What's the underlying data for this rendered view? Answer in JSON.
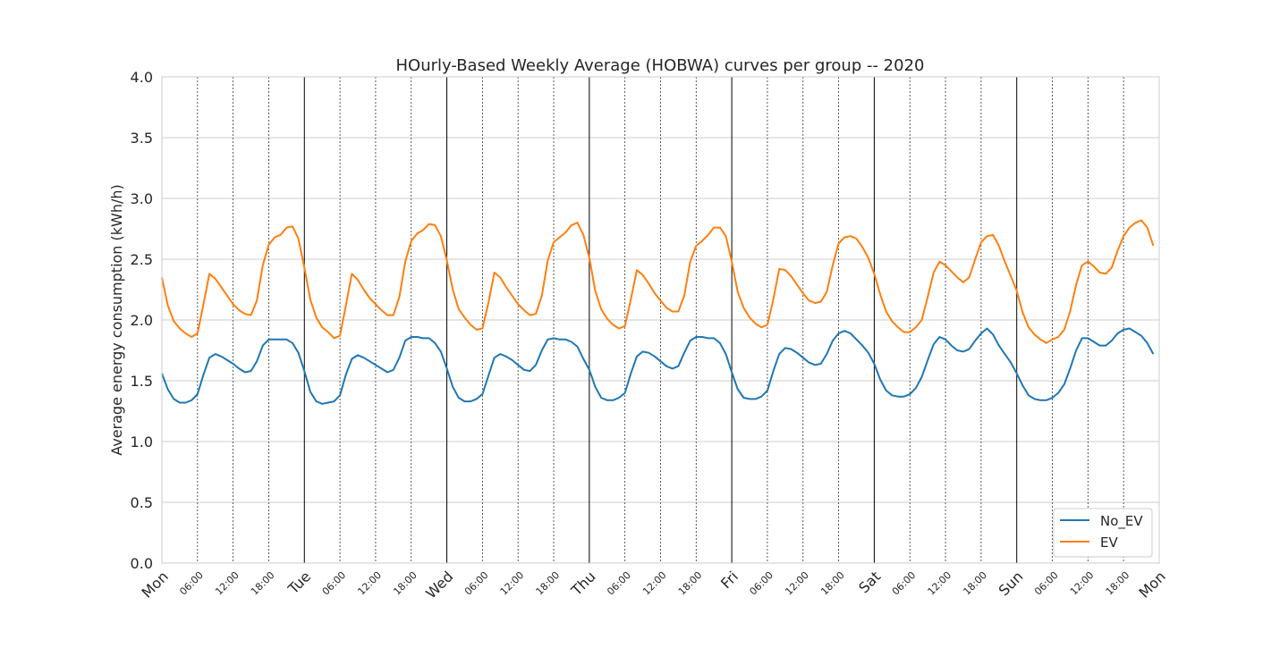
{
  "chart_data": {
    "type": "line",
    "title": "HOurly-Based Weekly Average (HOBWA) curves per group -- 2020",
    "xlabel": "",
    "ylabel": "Average energy consumption (kWh/h)",
    "ylim": [
      0,
      4
    ],
    "yticks": [
      "0.0",
      "0.5",
      "1.0",
      "1.5",
      "2.0",
      "2.5",
      "3.0",
      "3.5",
      "4.0"
    ],
    "xlim_hours": [
      0,
      168
    ],
    "x_unit": "hour of week (Mon 00:00 = 0)",
    "x_major_ticks": [
      "Mon",
      "Tue",
      "Wed",
      "Thu",
      "Fri",
      "Sat",
      "Sun",
      "Mon"
    ],
    "x_minor_ticks": [
      "06:00",
      "12:00",
      "18:00"
    ],
    "grid": true,
    "legend_position": "lower-right",
    "colors": {
      "No_EV": "#1f77b4",
      "EV": "#ff7f0e",
      "grid": "#cccccc"
    },
    "days": [
      {
        "name": "Mon",
        "No_EV": [
          1.56,
          1.43,
          1.35,
          1.32,
          1.32,
          1.34,
          1.39,
          1.55,
          1.69,
          1.72,
          1.7,
          1.67,
          1.64,
          1.6,
          1.57,
          1.58,
          1.66,
          1.79,
          1.84,
          1.84,
          1.84,
          1.84,
          1.81,
          1.73
        ],
        "EV": [
          2.35,
          2.12,
          1.99,
          1.93,
          1.89,
          1.86,
          1.89,
          2.13,
          2.38,
          2.34,
          2.27,
          2.2,
          2.13,
          2.08,
          2.05,
          2.04,
          2.16,
          2.45,
          2.62,
          2.68,
          2.7,
          2.76,
          2.77,
          2.67
        ]
      },
      {
        "name": "Tue",
        "No_EV": [
          1.58,
          1.41,
          1.33,
          1.31,
          1.32,
          1.33,
          1.38,
          1.55,
          1.68,
          1.71,
          1.69,
          1.66,
          1.63,
          1.6,
          1.57,
          1.59,
          1.69,
          1.83,
          1.86,
          1.86,
          1.85,
          1.85,
          1.81,
          1.74
        ],
        "EV": [
          2.43,
          2.17,
          2.02,
          1.94,
          1.9,
          1.85,
          1.87,
          2.12,
          2.38,
          2.33,
          2.25,
          2.18,
          2.13,
          2.08,
          2.04,
          2.04,
          2.19,
          2.48,
          2.65,
          2.71,
          2.74,
          2.79,
          2.78,
          2.69
        ]
      },
      {
        "name": "Wed",
        "No_EV": [
          1.6,
          1.45,
          1.36,
          1.33,
          1.33,
          1.35,
          1.39,
          1.54,
          1.69,
          1.72,
          1.7,
          1.67,
          1.63,
          1.59,
          1.58,
          1.63,
          1.75,
          1.84,
          1.85,
          1.84,
          1.84,
          1.82,
          1.78,
          1.68
        ],
        "EV": [
          2.49,
          2.25,
          2.09,
          2.02,
          1.96,
          1.92,
          1.93,
          2.14,
          2.39,
          2.35,
          2.27,
          2.2,
          2.13,
          2.08,
          2.04,
          2.05,
          2.2,
          2.49,
          2.64,
          2.68,
          2.72,
          2.78,
          2.8,
          2.7
        ]
      },
      {
        "name": "Thu",
        "No_EV": [
          1.59,
          1.45,
          1.36,
          1.34,
          1.34,
          1.36,
          1.4,
          1.56,
          1.7,
          1.74,
          1.73,
          1.7,
          1.66,
          1.62,
          1.6,
          1.62,
          1.73,
          1.83,
          1.86,
          1.86,
          1.85,
          1.85,
          1.81,
          1.72
        ],
        "EV": [
          2.51,
          2.24,
          2.09,
          2.01,
          1.96,
          1.93,
          1.95,
          2.17,
          2.41,
          2.37,
          2.3,
          2.22,
          2.16,
          2.1,
          2.07,
          2.07,
          2.2,
          2.48,
          2.61,
          2.65,
          2.7,
          2.76,
          2.76,
          2.69
        ]
      },
      {
        "name": "Fri",
        "No_EV": [
          1.57,
          1.43,
          1.36,
          1.35,
          1.35,
          1.37,
          1.42,
          1.58,
          1.72,
          1.77,
          1.76,
          1.73,
          1.69,
          1.65,
          1.63,
          1.64,
          1.72,
          1.83,
          1.89,
          1.91,
          1.89,
          1.84,
          1.79,
          1.73
        ],
        "EV": [
          2.48,
          2.23,
          2.1,
          2.02,
          1.97,
          1.94,
          1.96,
          2.17,
          2.42,
          2.41,
          2.36,
          2.29,
          2.22,
          2.16,
          2.14,
          2.15,
          2.23,
          2.45,
          2.63,
          2.68,
          2.69,
          2.67,
          2.6,
          2.51
        ]
      },
      {
        "name": "Sat",
        "No_EV": [
          1.64,
          1.51,
          1.42,
          1.38,
          1.37,
          1.37,
          1.39,
          1.44,
          1.53,
          1.67,
          1.8,
          1.86,
          1.84,
          1.79,
          1.75,
          1.74,
          1.76,
          1.83,
          1.89,
          1.93,
          1.88,
          1.79,
          1.72,
          1.65
        ],
        "EV": [
          2.38,
          2.21,
          2.07,
          1.99,
          1.94,
          1.9,
          1.9,
          1.94,
          2.0,
          2.19,
          2.39,
          2.48,
          2.45,
          2.4,
          2.35,
          2.31,
          2.35,
          2.5,
          2.64,
          2.69,
          2.7,
          2.61,
          2.48,
          2.36
        ]
      },
      {
        "name": "Sun",
        "No_EV": [
          1.56,
          1.46,
          1.38,
          1.35,
          1.34,
          1.34,
          1.36,
          1.4,
          1.47,
          1.6,
          1.75,
          1.85,
          1.85,
          1.82,
          1.79,
          1.79,
          1.83,
          1.89,
          1.92,
          1.93,
          1.9,
          1.87,
          1.81,
          1.72
        ],
        "EV": [
          2.24,
          2.06,
          1.94,
          1.88,
          1.84,
          1.81,
          1.84,
          1.86,
          1.92,
          2.07,
          2.29,
          2.45,
          2.48,
          2.44,
          2.39,
          2.38,
          2.43,
          2.57,
          2.69,
          2.76,
          2.8,
          2.82,
          2.76,
          2.61
        ]
      }
    ]
  },
  "legend": {
    "items": [
      {
        "label": "No_EV",
        "color": "#1f77b4"
      },
      {
        "label": "EV",
        "color": "#ff7f0e"
      }
    ]
  }
}
